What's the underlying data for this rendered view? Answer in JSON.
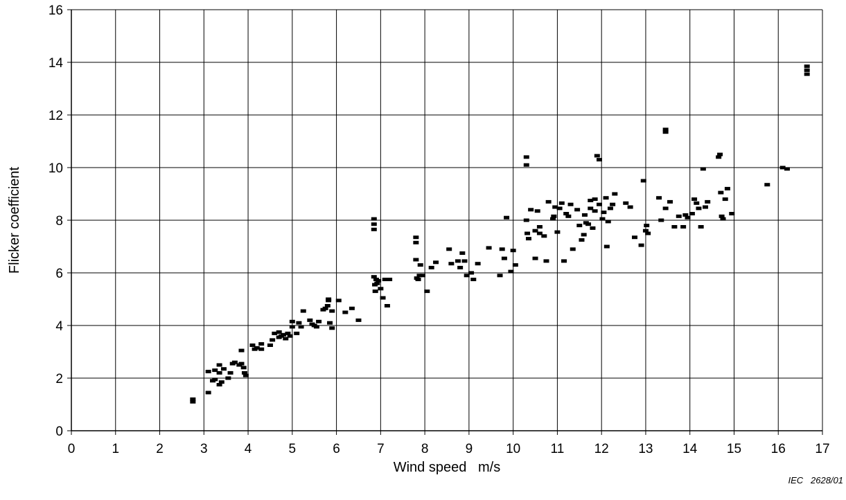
{
  "chart_data": {
    "type": "scatter",
    "title": "",
    "xlabel": "Wind speed   m/s",
    "ylabel": "Flicker coefficient",
    "xlim": [
      0,
      17
    ],
    "ylim": [
      0,
      16
    ],
    "x_ticks": [
      0,
      1,
      2,
      3,
      4,
      5,
      6,
      7,
      8,
      9,
      10,
      11,
      12,
      13,
      14,
      15,
      16,
      17
    ],
    "y_ticks": [
      0,
      2,
      4,
      6,
      8,
      10,
      12,
      14,
      16
    ],
    "grid": true,
    "legend": "none",
    "marker_color": "#000000",
    "grid_color": "#000000",
    "series": [
      {
        "x": [
          2.75,
          2.75,
          3.1,
          3.1,
          3.2,
          3.25,
          3.25,
          3.35,
          3.35,
          3.35,
          3.4,
          3.45,
          3.55,
          3.6,
          3.65,
          3.7,
          3.8,
          3.85,
          3.85,
          3.9,
          3.92,
          3.95,
          4.1,
          4.15,
          4.2,
          4.3,
          4.3,
          4.5,
          4.55,
          4.6,
          4.7,
          4.7,
          4.75,
          4.8,
          4.85,
          4.9,
          4.95,
          5.0,
          5.0,
          5.1,
          5.15,
          5.2,
          5.25,
          5.4,
          5.45,
          5.5,
          5.55,
          5.6,
          5.7,
          5.75,
          5.8,
          5.82,
          5.82,
          5.85,
          5.9,
          5.9,
          6.05,
          6.2,
          6.35,
          6.5,
          6.85,
          6.85,
          6.85,
          6.85,
          6.87,
          6.88,
          6.9,
          6.92,
          6.95,
          7.0,
          7.05,
          7.1,
          7.15,
          7.2,
          7.8,
          7.8,
          7.8,
          7.82,
          7.85,
          7.88,
          7.9,
          7.95,
          8.05,
          8.15,
          8.25,
          8.55,
          8.6,
          8.75,
          8.8,
          8.85,
          8.9,
          8.95,
          9.05,
          9.1,
          9.2,
          9.45,
          9.7,
          9.75,
          9.8,
          9.85,
          9.95,
          10.0,
          10.05,
          10.3,
          10.3,
          10.3,
          10.32,
          10.35,
          10.4,
          10.5,
          10.5,
          10.55,
          10.6,
          10.6,
          10.7,
          10.75,
          10.8,
          10.9,
          10.92,
          10.95,
          11.0,
          11.05,
          11.1,
          11.15,
          11.2,
          11.25,
          11.3,
          11.35,
          11.45,
          11.5,
          11.55,
          11.6,
          11.62,
          11.65,
          11.7,
          11.75,
          11.75,
          11.8,
          11.85,
          11.85,
          11.9,
          11.95,
          11.95,
          12.02,
          12.05,
          12.1,
          12.12,
          12.15,
          12.2,
          12.25,
          12.3,
          12.55,
          12.65,
          12.75,
          12.9,
          12.95,
          13.0,
          13.02,
          13.05,
          13.3,
          13.35,
          13.45,
          13.45,
          13.45,
          13.55,
          13.65,
          13.75,
          13.85,
          13.9,
          13.95,
          14.05,
          14.1,
          14.15,
          14.2,
          14.25,
          14.3,
          14.35,
          14.4,
          14.65,
          14.68,
          14.7,
          14.72,
          14.75,
          14.8,
          14.85,
          14.95,
          15.75,
          16.1,
          16.2,
          16.65,
          16.65,
          16.65
        ],
        "y": [
          1.1,
          1.2,
          1.45,
          2.25,
          1.9,
          2.3,
          1.95,
          1.75,
          2.2,
          2.5,
          1.85,
          2.35,
          2.0,
          2.2,
          2.55,
          2.6,
          2.5,
          3.05,
          2.55,
          2.4,
          2.2,
          2.1,
          3.25,
          3.1,
          3.15,
          3.3,
          3.1,
          3.25,
          3.45,
          3.7,
          3.55,
          3.75,
          3.6,
          3.65,
          3.5,
          3.7,
          3.6,
          4.15,
          3.95,
          3.7,
          4.1,
          3.95,
          4.55,
          4.2,
          4.05,
          4.0,
          3.95,
          4.15,
          4.6,
          4.65,
          4.75,
          4.95,
          5.0,
          4.1,
          4.55,
          3.9,
          4.95,
          4.5,
          4.65,
          4.2,
          8.05,
          7.85,
          7.65,
          5.85,
          5.55,
          5.3,
          5.75,
          5.6,
          5.7,
          5.4,
          5.05,
          5.75,
          4.75,
          5.75,
          7.35,
          7.15,
          6.5,
          5.8,
          5.75,
          5.9,
          6.3,
          5.9,
          5.3,
          6.2,
          6.4,
          6.9,
          6.35,
          6.45,
          6.2,
          6.75,
          6.45,
          5.9,
          6.0,
          5.75,
          6.35,
          6.95,
          5.9,
          6.9,
          6.55,
          8.1,
          6.05,
          6.85,
          6.3,
          10.4,
          10.1,
          8.0,
          7.5,
          7.3,
          8.4,
          6.55,
          7.6,
          8.35,
          7.5,
          7.75,
          7.4,
          6.45,
          8.7,
          8.05,
          8.15,
          8.5,
          7.55,
          8.45,
          8.65,
          6.45,
          8.25,
          8.15,
          8.6,
          6.9,
          8.4,
          7.8,
          7.25,
          7.45,
          8.2,
          7.9,
          7.85,
          8.75,
          8.45,
          7.7,
          8.35,
          8.8,
          10.45,
          10.3,
          8.6,
          8.05,
          8.3,
          8.85,
          7.0,
          7.95,
          8.45,
          8.6,
          9.0,
          8.65,
          8.5,
          7.35,
          7.05,
          9.5,
          7.6,
          7.8,
          7.5,
          8.85,
          8.0,
          8.45,
          11.45,
          11.35,
          8.7,
          7.75,
          8.15,
          7.75,
          8.2,
          8.1,
          8.25,
          8.8,
          8.65,
          8.45,
          7.75,
          9.95,
          8.5,
          8.7,
          10.4,
          10.5,
          9.05,
          8.15,
          8.05,
          8.8,
          9.2,
          8.25,
          9.35,
          10.0,
          9.95,
          13.85,
          13.7,
          13.55
        ]
      }
    ]
  },
  "credit": "IEC   2628/01"
}
